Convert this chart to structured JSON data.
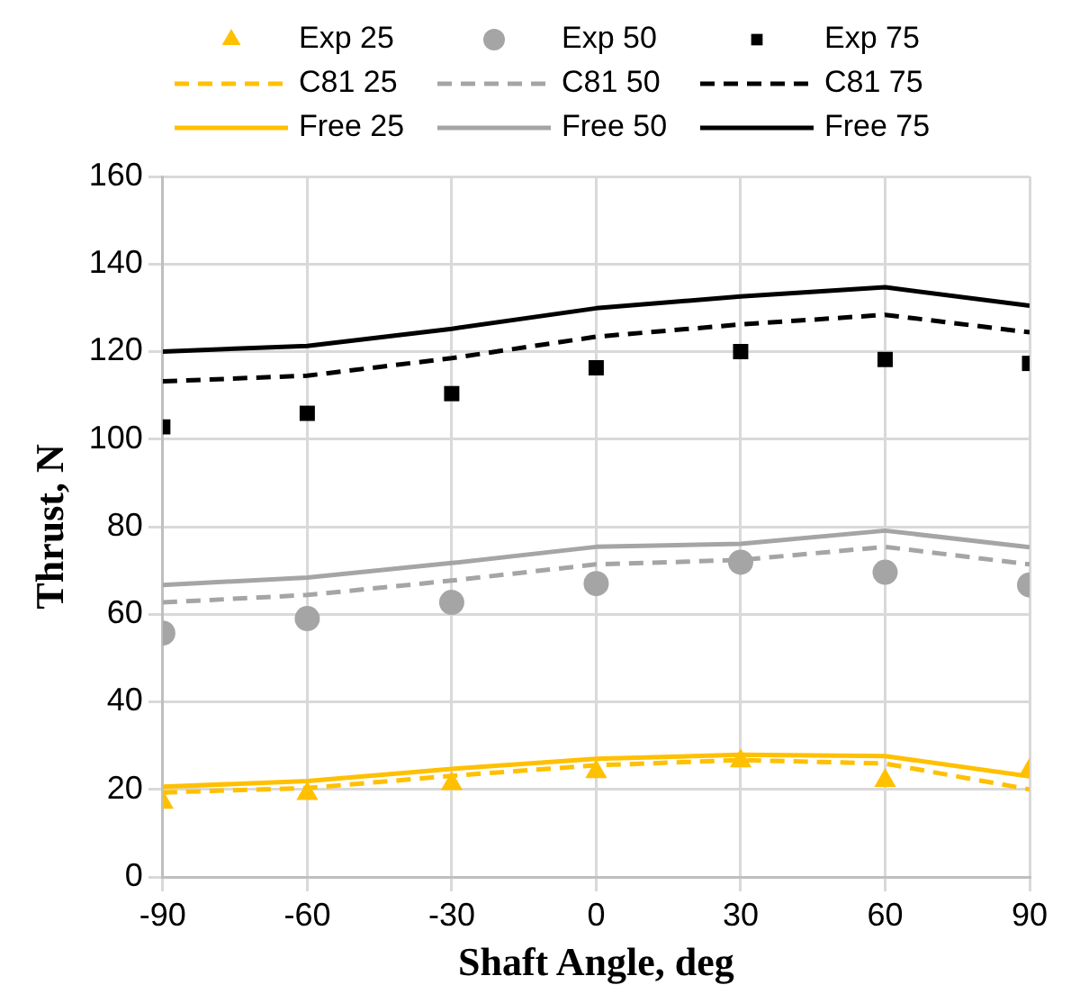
{
  "chart_data": {
    "type": "line",
    "xlabel": "Shaft Angle, deg",
    "ylabel": "Thrust, N",
    "x": [
      -90,
      -60,
      -30,
      0,
      30,
      60,
      90
    ],
    "xlim": [
      -90,
      90
    ],
    "xticks": [
      -90,
      -60,
      -30,
      0,
      30,
      60,
      90
    ],
    "ylim": [
      0,
      160
    ],
    "yticks": [
      0,
      20,
      40,
      60,
      80,
      100,
      120,
      140,
      160
    ],
    "grid": true,
    "legend": "top",
    "series": [
      {
        "name": "Exp 25",
        "type": "scatter",
        "marker": "triangle",
        "color": "#ffc000",
        "values": [
          17,
          19,
          21.3,
          24,
          26.5,
          22,
          24.4
        ]
      },
      {
        "name": "Exp 50",
        "type": "scatter",
        "marker": "circle",
        "color": "#a5a5a5",
        "values": [
          55.7,
          59,
          62.7,
          67,
          71.9,
          69.6,
          66.7
        ]
      },
      {
        "name": "Exp 75",
        "type": "scatter",
        "marker": "square",
        "color": "#000000",
        "values": [
          102.8,
          105.9,
          110.4,
          116.3,
          120,
          118.2,
          117.3
        ]
      },
      {
        "name": "C81 25",
        "type": "line",
        "line_style": "dashed",
        "color": "#ffc000",
        "values": [
          19.3,
          20.3,
          23.1,
          25.5,
          26.7,
          25.9,
          20
        ]
      },
      {
        "name": "C81 50",
        "type": "line",
        "line_style": "dashed",
        "color": "#a5a5a5",
        "values": [
          62.7,
          64.4,
          67.7,
          71.4,
          72.4,
          75.4,
          71.4
        ]
      },
      {
        "name": "C81 75",
        "type": "line",
        "line_style": "dashed",
        "color": "#000000",
        "values": [
          113.2,
          114.5,
          118.5,
          123.4,
          126.2,
          128.4,
          124.4
        ]
      },
      {
        "name": "Free 25",
        "type": "line",
        "line_style": "solid",
        "color": "#ffc000",
        "values": [
          20.6,
          21.9,
          24.7,
          27,
          27.9,
          27.6,
          23
        ]
      },
      {
        "name": "Free 50",
        "type": "line",
        "line_style": "solid",
        "color": "#a5a5a5",
        "values": [
          66.7,
          68.4,
          71.7,
          75.4,
          76.1,
          79.1,
          75.3
        ]
      },
      {
        "name": "Free 75",
        "type": "line",
        "line_style": "solid",
        "color": "#000000",
        "values": [
          120,
          121.3,
          125.2,
          129.9,
          132.6,
          134.7,
          130.5
        ]
      }
    ]
  }
}
